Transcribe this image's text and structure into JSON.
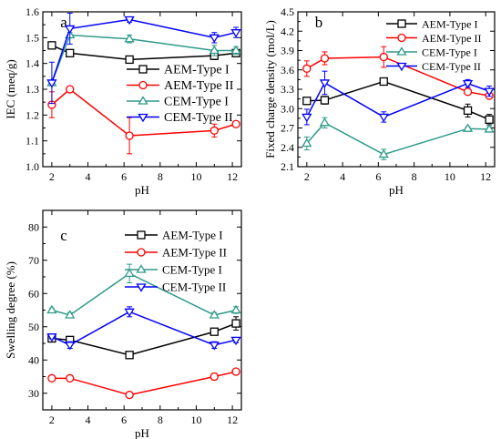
{
  "colors": {
    "AEM-Type I": "#000000",
    "AEM-Type II": "#ff0000",
    "CEM-Type I": "#2e9a8a",
    "CEM-Type II": "#0000ff"
  },
  "chart_data": [
    {
      "panel": "a",
      "type": "line",
      "xlabel": "pH",
      "ylabel": "IEC (meq/g)",
      "xlim": [
        1.5,
        12.5
      ],
      "ylim": [
        1.0,
        1.6
      ],
      "xticks": [
        2,
        4,
        6,
        8,
        10,
        12
      ],
      "yticks": [
        1.0,
        1.1,
        1.2,
        1.3,
        1.4,
        1.5,
        1.6
      ],
      "grid": false,
      "legend": "center-right",
      "series": [
        {
          "name": "AEM-Type I",
          "marker": "square",
          "x": [
            2.0,
            3.0,
            6.3,
            11.0,
            12.2
          ],
          "y": [
            1.47,
            1.44,
            1.415,
            1.43,
            1.44
          ],
          "err": [
            0.005,
            0.01,
            0.01,
            0.015,
            0.01
          ]
        },
        {
          "name": "AEM-Type II",
          "marker": "circle",
          "x": [
            2.0,
            3.0,
            6.3,
            11.0,
            12.2
          ],
          "y": [
            1.24,
            1.3,
            1.12,
            1.14,
            1.165
          ],
          "err": [
            0.05,
            0.01,
            0.07,
            0.025,
            0.005
          ]
        },
        {
          "name": "CEM-Type I",
          "marker": "triangle-up",
          "x": [
            2.0,
            3.0,
            6.3,
            11.0,
            12.2
          ],
          "y": [
            1.325,
            1.51,
            1.495,
            1.45,
            1.45
          ],
          "err": [
            0.01,
            0.01,
            0.015,
            0.02,
            0.015
          ]
        },
        {
          "name": "CEM-Type II",
          "marker": "triangle-down",
          "x": [
            2.0,
            3.0,
            6.3,
            11.0,
            12.2
          ],
          "y": [
            1.325,
            1.535,
            1.57,
            1.5,
            1.52
          ],
          "err": [
            0.08,
            0.06,
            0.01,
            0.02,
            0.02
          ]
        }
      ]
    },
    {
      "panel": "b",
      "type": "line",
      "xlabel": "pH",
      "ylabel": "Fixed charge density (mol/L)",
      "xlim": [
        1.5,
        12.5
      ],
      "ylim": [
        2.1,
        4.5
      ],
      "xticks": [
        2,
        4,
        6,
        8,
        10,
        12
      ],
      "yticks": [
        2.1,
        2.4,
        2.7,
        3.0,
        3.3,
        3.6,
        3.9,
        4.2,
        4.5
      ],
      "grid": false,
      "legend": "top-right",
      "series": [
        {
          "name": "AEM-Type I",
          "marker": "square",
          "x": [
            2.0,
            3.0,
            6.3,
            11.0,
            12.2
          ],
          "y": [
            3.12,
            3.13,
            3.42,
            2.97,
            2.83
          ],
          "err": [
            0.05,
            0.06,
            0.05,
            0.1,
            0.08
          ]
        },
        {
          "name": "AEM-Type II",
          "marker": "circle",
          "x": [
            2.0,
            3.0,
            6.3,
            11.0,
            12.2
          ],
          "y": [
            3.62,
            3.78,
            3.8,
            3.26,
            3.2
          ],
          "err": [
            0.12,
            0.1,
            0.16,
            0.04,
            0.03
          ]
        },
        {
          "name": "CEM-Type I",
          "marker": "triangle-up",
          "x": [
            2.0,
            3.0,
            6.3,
            11.0,
            12.2
          ],
          "y": [
            2.46,
            2.78,
            2.29,
            2.69,
            2.68
          ],
          "err": [
            0.1,
            0.08,
            0.08,
            0.03,
            0.04
          ]
        },
        {
          "name": "CEM-Type II",
          "marker": "triangle-down",
          "x": [
            2.0,
            3.0,
            6.3,
            11.0,
            12.2
          ],
          "y": [
            2.87,
            3.4,
            2.87,
            3.39,
            3.27
          ],
          "err": [
            0.12,
            0.18,
            0.08,
            0.06,
            0.08
          ]
        }
      ]
    },
    {
      "panel": "c",
      "type": "line",
      "xlabel": "pH",
      "ylabel": "Swelling degree (%)",
      "xlim": [
        1.5,
        12.5
      ],
      "ylim": [
        25,
        85
      ],
      "xticks": [
        2,
        4,
        6,
        8,
        10,
        12
      ],
      "yticks": [
        30,
        40,
        50,
        60,
        70,
        80
      ],
      "grid": false,
      "legend": "top-right",
      "series": [
        {
          "name": "AEM-Type I",
          "marker": "square",
          "x": [
            2.0,
            3.0,
            6.3,
            11.0,
            12.2
          ],
          "y": [
            46.5,
            46.0,
            41.5,
            48.5,
            51.0
          ],
          "err": [
            0.6,
            0.6,
            0.8,
            1.0,
            2.0
          ]
        },
        {
          "name": "AEM-Type II",
          "marker": "circle",
          "x": [
            2.0,
            3.0,
            6.3,
            11.0,
            12.2
          ],
          "y": [
            34.5,
            34.5,
            29.5,
            35.0,
            36.5
          ],
          "err": [
            0.6,
            0.6,
            0.6,
            1.0,
            0.6
          ]
        },
        {
          "name": "CEM-Type I",
          "marker": "triangle-up",
          "x": [
            2.0,
            3.0,
            6.3,
            11.0,
            12.2
          ],
          "y": [
            55.0,
            53.5,
            66.0,
            53.5,
            55.0
          ],
          "err": [
            0.6,
            0.8,
            2.8,
            0.8,
            1.0
          ]
        },
        {
          "name": "CEM-Type II",
          "marker": "triangle-down",
          "x": [
            2.0,
            3.0,
            6.3,
            11.0,
            12.2
          ],
          "y": [
            47.0,
            44.5,
            54.5,
            44.5,
            46.0
          ],
          "err": [
            0.6,
            1.0,
            1.5,
            1.0,
            0.8
          ]
        }
      ]
    }
  ]
}
